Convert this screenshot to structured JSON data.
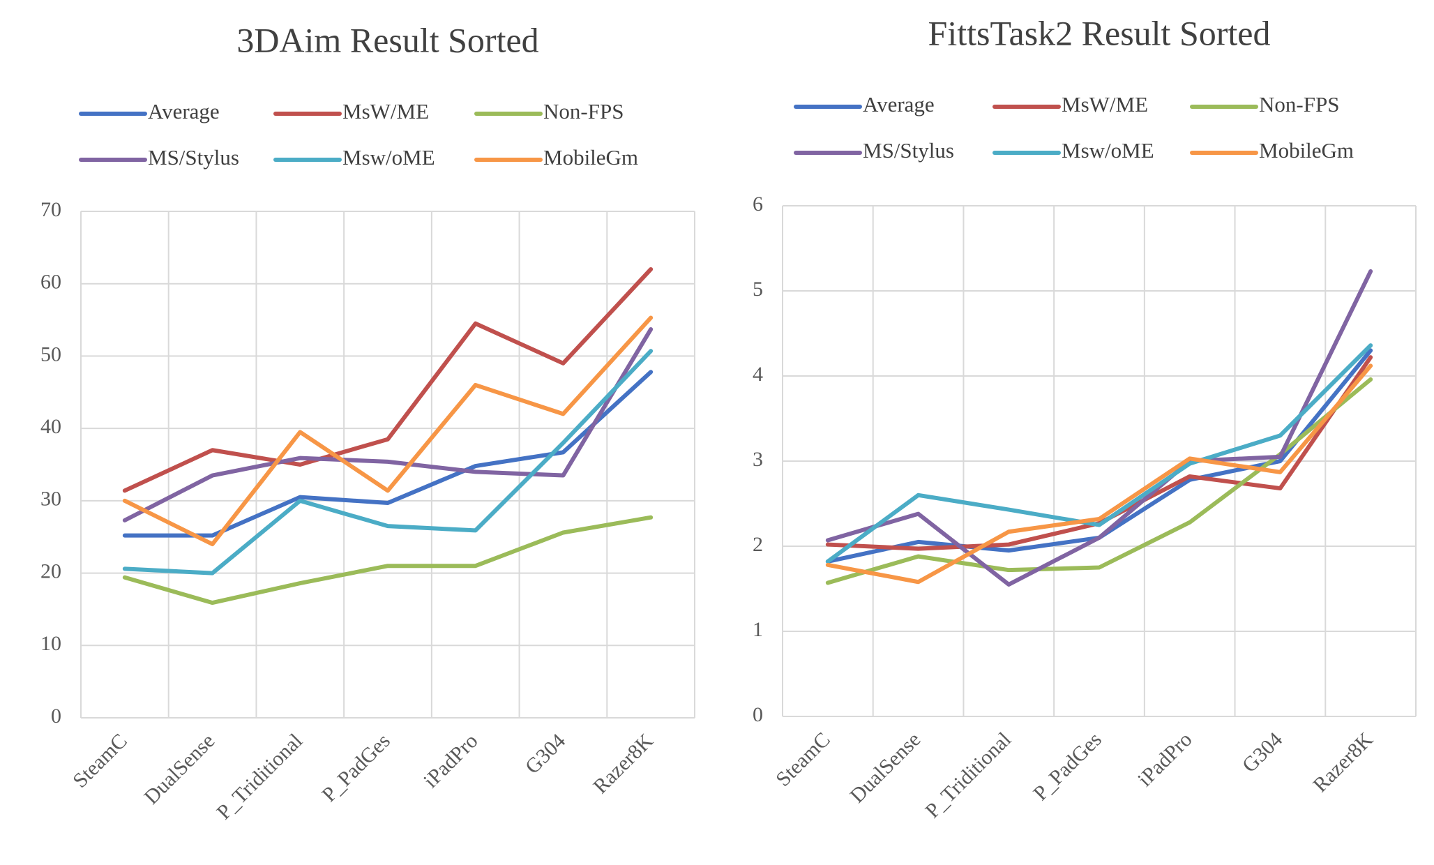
{
  "chart_data": [
    {
      "type": "line",
      "title": "3DAim Result Sorted",
      "categories": [
        "SteamC",
        "DualSense",
        "P_Triditional",
        "P_PadGes",
        "iPadPro",
        "G304",
        "Razer8K"
      ],
      "ylim": [
        0,
        70
      ],
      "yticks": [
        0,
        10,
        20,
        30,
        40,
        50,
        60,
        70
      ],
      "grid": true,
      "series": [
        {
          "name": "Average",
          "color": "#4472c4",
          "values": [
            25.2,
            25.2,
            30.5,
            29.7,
            34.8,
            36.7,
            47.8
          ]
        },
        {
          "name": "MsW/ME",
          "color": "#c0504d",
          "values": [
            31.4,
            37,
            35,
            38.5,
            54.5,
            49,
            62
          ]
        },
        {
          "name": "Non-FPS",
          "color": "#9bbb59",
          "values": [
            19.4,
            15.9,
            18.6,
            21,
            21,
            25.6,
            27.7
          ]
        },
        {
          "name": "MS/Stylus",
          "color": "#8064a2",
          "values": [
            27.3,
            33.5,
            35.9,
            35.4,
            34,
            33.5,
            53.7
          ]
        },
        {
          "name": "Msw/oME",
          "color": "#4bacc6",
          "values": [
            20.6,
            20,
            30,
            26.5,
            25.9,
            38,
            50.7
          ]
        },
        {
          "name": "MobileGm",
          "color": "#f79646",
          "values": [
            30,
            24,
            39.5,
            31.4,
            46,
            42,
            55.3
          ]
        }
      ]
    },
    {
      "type": "line",
      "title": "FittsTask2 Result Sorted",
      "categories": [
        "SteamC",
        "DualSense",
        "P_Triditional",
        "P_PadGes",
        "iPadPro",
        "G304",
        "Razer8K"
      ],
      "ylim": [
        0,
        6
      ],
      "yticks": [
        0,
        1,
        2,
        3,
        4,
        5,
        6
      ],
      "grid": true,
      "series": [
        {
          "name": "Average",
          "color": "#4472c4",
          "values": [
            1.82,
            2.05,
            1.95,
            2.1,
            2.78,
            3.0,
            4.3
          ]
        },
        {
          "name": "MsW/ME",
          "color": "#c0504d",
          "values": [
            2.02,
            1.97,
            2.02,
            2.27,
            2.82,
            2.68,
            4.22
          ]
        },
        {
          "name": "Non-FPS",
          "color": "#9bbb59",
          "values": [
            1.57,
            1.88,
            1.72,
            1.75,
            2.28,
            3.08,
            3.96
          ]
        },
        {
          "name": "MS/Stylus",
          "color": "#8064a2",
          "values": [
            2.07,
            2.38,
            1.55,
            2.1,
            3.0,
            3.05,
            5.23
          ]
        },
        {
          "name": "Msw/oME",
          "color": "#4bacc6",
          "values": [
            1.82,
            2.6,
            2.43,
            2.25,
            2.97,
            3.3,
            4.36
          ]
        },
        {
          "name": "MobileGm",
          "color": "#f79646",
          "values": [
            1.78,
            1.58,
            2.17,
            2.32,
            3.03,
            2.87,
            4.12
          ]
        }
      ]
    }
  ]
}
